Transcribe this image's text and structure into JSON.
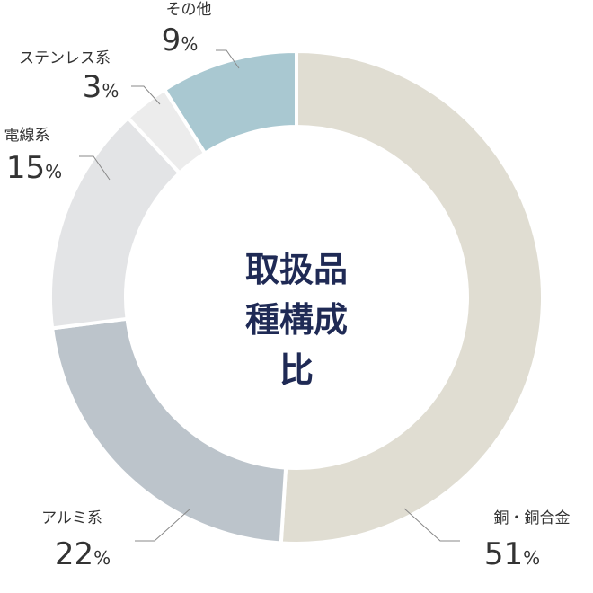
{
  "chart_data": {
    "type": "donut",
    "title": "取扱品種構成比",
    "categories": [
      "銅・銅合金",
      "アルミ系",
      "電線系",
      "ステンレス系",
      "その他"
    ],
    "values": [
      51,
      22,
      15,
      3,
      9
    ],
    "value_labels": [
      "51%",
      "22%",
      "15%",
      "3%",
      "9%"
    ],
    "colors": [
      "#e0ddd2",
      "#bcc4cb",
      "#e3e4e6",
      "#ececec",
      "#a9c8d1"
    ]
  }
}
